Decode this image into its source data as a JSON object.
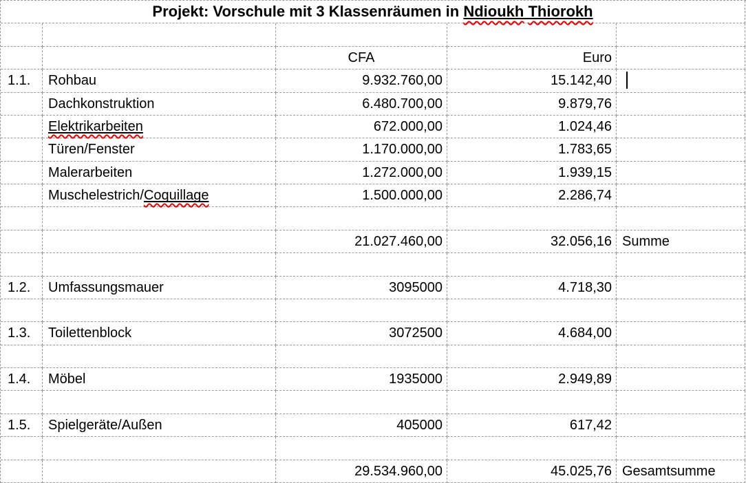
{
  "title": {
    "text_before": "Projekt: Vorschule mit 3 Klassenräumen in",
    "underlined_word_1": "Ndioukh",
    "underlined_word_2": "Thiorokh"
  },
  "column_headers": {
    "cfa": "CFA",
    "euro": "Euro"
  },
  "rows": [
    {
      "num": "1.1.",
      "label": "Rohbau",
      "cfa": "9.932.760,00",
      "euro": "15.142,40"
    },
    {
      "label": "Dachkonstruktion",
      "cfa": "6.480.700,00",
      "euro": "9.879,76"
    },
    {
      "label_marked": "Elektrikarbeiten",
      "cfa": "672.000,00",
      "euro": "1.024,46"
    },
    {
      "label": "Türen/Fenster",
      "cfa": "1.170.000,00",
      "euro": "1.783,65"
    },
    {
      "label": "Malerarbeiten",
      "cfa": "1.272.000,00",
      "euro": "1.939,15"
    },
    {
      "label": "Muschelestrich/",
      "label_marked": "Coquillage",
      "cfa": "1.500.000,00",
      "euro": "2.286,74"
    },
    {
      "cfa": "21.027.460,00",
      "euro": "32.056,16",
      "note": "Summe"
    },
    {
      "num": "1.2.",
      "label": "Umfassungsmauer",
      "cfa": "3095000",
      "euro": "4.718,30"
    },
    {
      "num": "1.3.",
      "label": "Toilettenblock",
      "cfa": "3072500",
      "euro": "4.684,00"
    },
    {
      "num": "1.4.",
      "label": "Möbel",
      "cfa": "1935000",
      "euro": "2.949,89"
    },
    {
      "num": "1.5.",
      "label": "Spielgeräte/Außen",
      "cfa": "405000",
      "euro": "617,42"
    },
    {
      "cfa": "29.534.960,00",
      "euro": "45.025,76",
      "note": "Gesamtsumme"
    }
  ],
  "colors": {
    "text": "#000000",
    "gridline": "#9b9b9b",
    "spellcheck_underline": "#e60000",
    "background": "#ffffff"
  }
}
